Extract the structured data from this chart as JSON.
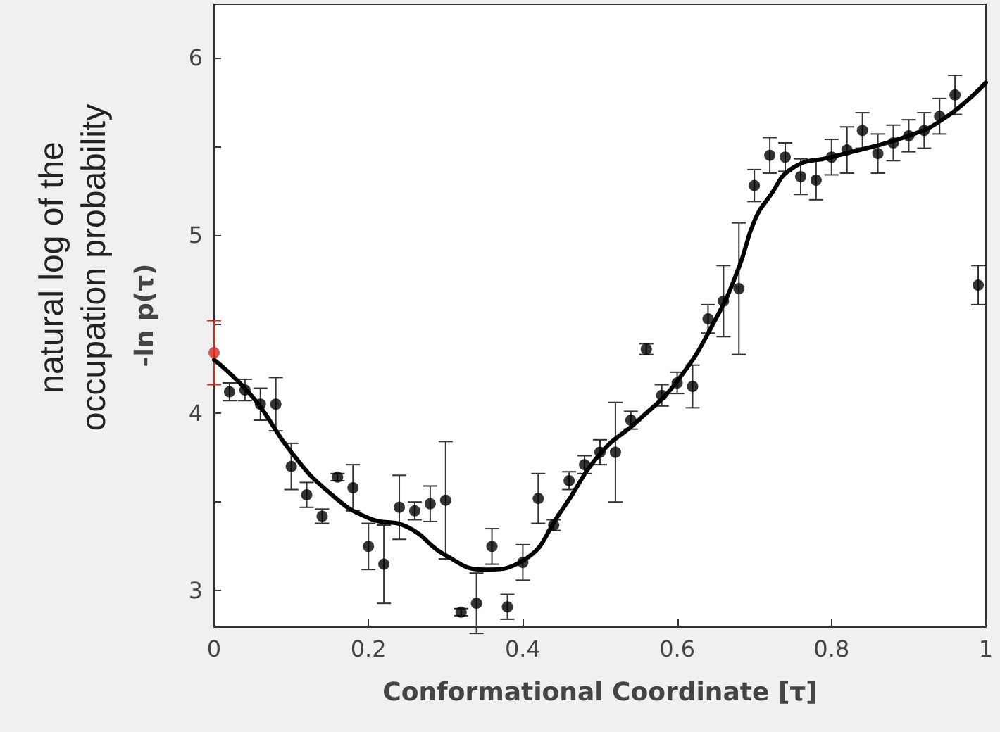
{
  "chart_data": {
    "type": "scatter",
    "xlabel": "Conformational Coordinate [τ]",
    "ylabel": "-ln p(τ)",
    "annotations": [
      "natural log of the occupation probability"
    ],
    "xlim": [
      0,
      1
    ],
    "xticks": [
      0,
      0.2,
      0.4,
      0.6,
      0.8,
      1
    ],
    "ylim": [
      2.8,
      6.3
    ],
    "yticks": [
      3,
      {
        "value": 3.5,
        "label": null
      },
      4,
      {
        "value": 4.5,
        "label": null
      },
      5,
      {
        "value": 5.5,
        "label": null
      },
      6
    ],
    "grid": false,
    "marker": "circle",
    "series": [
      {
        "color": "#d62a1e",
        "x": [
          0
        ],
        "values": [
          4.34
        ],
        "errors": [
          0.18
        ]
      },
      {
        "color": "#000000",
        "x": [
          0.02,
          0.04,
          0.06,
          0.08,
          0.1,
          0.12,
          0.14,
          0.16,
          0.18,
          0.2,
          0.22,
          0.24,
          0.26,
          0.28,
          0.3,
          0.32,
          0.34,
          0.36,
          0.38,
          0.4,
          0.42,
          0.44,
          0.46,
          0.48,
          0.5,
          0.52,
          0.54,
          0.56,
          0.58,
          0.6,
          0.62,
          0.64,
          0.66,
          0.68,
          0.7,
          0.72,
          0.74,
          0.76,
          0.78,
          0.8,
          0.82,
          0.84,
          0.86,
          0.88,
          0.9,
          0.92,
          0.94,
          0.96,
          0.99
        ],
        "values": [
          4.12,
          4.13,
          4.05,
          4.05,
          3.7,
          3.54,
          3.42,
          3.64,
          3.58,
          3.25,
          3.15,
          3.47,
          3.45,
          3.49,
          3.51,
          2.88,
          2.93,
          3.25,
          2.91,
          3.16,
          3.52,
          3.37,
          3.62,
          3.71,
          3.78,
          3.78,
          3.96,
          4.36,
          4.1,
          4.17,
          4.15,
          4.53,
          4.63,
          4.7,
          5.28,
          5.45,
          5.44,
          5.33,
          5.31,
          5.44,
          5.48,
          5.59,
          5.46,
          5.52,
          5.56,
          5.59,
          5.67,
          5.79,
          4.72
        ],
        "errors": [
          0.05,
          0.06,
          0.09,
          0.15,
          0.13,
          0.07,
          0.04,
          0.02,
          0.13,
          0.13,
          0.22,
          0.18,
          0.05,
          0.1,
          0.33,
          0.02,
          0.17,
          0.1,
          0.07,
          0.1,
          0.14,
          0.03,
          0.05,
          0.05,
          0.07,
          0.28,
          0.05,
          0.03,
          0.06,
          0.06,
          0.12,
          0.08,
          0.2,
          0.37,
          0.09,
          0.1,
          0.08,
          0.1,
          0.11,
          0.1,
          0.13,
          0.1,
          0.11,
          0.1,
          0.09,
          0.1,
          0.1,
          0.11,
          0.11
        ]
      },
      {
        "type": "line",
        "color": "#000000",
        "marker": "none",
        "line_style": "solid",
        "x": [
          0,
          0.05,
          0.1,
          0.15,
          0.2,
          0.25,
          0.3,
          0.35,
          0.4,
          0.45,
          0.5,
          0.55,
          0.6,
          0.65,
          0.68,
          0.7,
          0.72,
          0.75,
          0.8,
          0.9,
          0.95,
          1
        ],
        "values": [
          4.3,
          4.09,
          3.78,
          3.55,
          3.41,
          3.36,
          3.2,
          3.12,
          3.17,
          3.45,
          3.77,
          3.96,
          4.18,
          4.53,
          4.82,
          5.08,
          5.22,
          5.38,
          5.44,
          5.56,
          5.67,
          5.86
        ]
      }
    ]
  }
}
